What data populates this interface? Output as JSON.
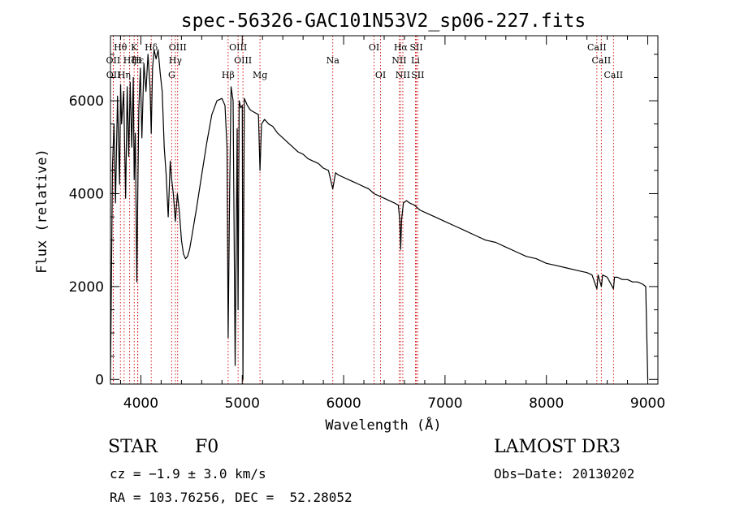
{
  "chart_data": {
    "type": "line",
    "title": "spec-56326-GAC101N53V2_sp06-227.fits",
    "xlabel": "Wavelength (Å)",
    "ylabel": "Flux (relative)",
    "xlim": [
      3700,
      9100
    ],
    "ylim": [
      -100,
      7400
    ],
    "x_ticks": [
      4000,
      5000,
      6000,
      7000,
      8000,
      9000
    ],
    "x_tick_labels": [
      "4000",
      "5000",
      "6000",
      "7000",
      "8000",
      "9000"
    ],
    "y_ticks": [
      0,
      2000,
      4000,
      6000
    ],
    "y_tick_labels": [
      "0",
      "2000",
      "4000",
      "6000"
    ],
    "grid": false,
    "lines": [
      {
        "label": "Hθ",
        "wavelength": 3798,
        "row": 0
      },
      {
        "label": "OII",
        "wavelength": 3727,
        "row": 1
      },
      {
        "label": "OII",
        "wavelength": 3729,
        "row": 2
      },
      {
        "label": "Hη",
        "wavelength": 3835,
        "row": 2
      },
      {
        "label": "K",
        "wavelength": 3934,
        "row": 0
      },
      {
        "label": "H",
        "wavelength": 3968,
        "row": 1
      },
      {
        "label": "Hε",
        "wavelength": 3970,
        "row": 1
      },
      {
        "label": "Hζ",
        "wavelength": 3889,
        "row": 1
      },
      {
        "label": "Hδ",
        "wavelength": 4102,
        "row": 0
      },
      {
        "label": "OIII",
        "wavelength": 4363,
        "row": 0
      },
      {
        "label": "Hγ",
        "wavelength": 4340,
        "row": 1
      },
      {
        "label": "G",
        "wavelength": 4304,
        "row": 2
      },
      {
        "label": "Hβ",
        "wavelength": 4861,
        "row": 2
      },
      {
        "label": "OIII",
        "wavelength": 4959,
        "row": 0
      },
      {
        "label": "OIII",
        "wavelength": 5007,
        "row": 1
      },
      {
        "label": "Mg",
        "wavelength": 5175,
        "row": 2
      },
      {
        "label": "Na",
        "wavelength": 5893,
        "row": 1
      },
      {
        "label": "OI",
        "wavelength": 6300,
        "row": 0
      },
      {
        "label": "OI",
        "wavelength": 6364,
        "row": 2
      },
      {
        "label": "Hα",
        "wavelength": 6563,
        "row": 0
      },
      {
        "label": "NII",
        "wavelength": 6548,
        "row": 1
      },
      {
        "label": "NII",
        "wavelength": 6584,
        "row": 2
      },
      {
        "label": "SII",
        "wavelength": 6717,
        "row": 0
      },
      {
        "label": "SII",
        "wavelength": 6731,
        "row": 2
      },
      {
        "label": "Li",
        "wavelength": 6708,
        "row": 1
      },
      {
        "label": "CaII",
        "wavelength": 8498,
        "row": 0
      },
      {
        "label": "CaII",
        "wavelength": 8542,
        "row": 1
      },
      {
        "label": "CaII",
        "wavelength": 8662,
        "row": 2
      }
    ],
    "spectrum": {
      "x": [
        3700,
        3720,
        3735,
        3750,
        3770,
        3790,
        3800,
        3810,
        3830,
        3850,
        3865,
        3880,
        3895,
        3910,
        3925,
        3934,
        3945,
        3960,
        3968,
        3980,
        3995,
        4010,
        4030,
        4050,
        4070,
        4090,
        4102,
        4115,
        4130,
        4150,
        4170,
        4190,
        4210,
        4230,
        4250,
        4270,
        4290,
        4304,
        4320,
        4340,
        4360,
        4380,
        4400,
        4420,
        4440,
        4460,
        4480,
        4500,
        4550,
        4600,
        4650,
        4700,
        4750,
        4800,
        4830,
        4850,
        4861,
        4875,
        4890,
        4910,
        4930,
        4950,
        4959,
        4970,
        4985,
        5000,
        5007,
        5020,
        5050,
        5080,
        5120,
        5160,
        5175,
        5190,
        5220,
        5260,
        5300,
        5350,
        5400,
        5450,
        5500,
        5550,
        5600,
        5650,
        5700,
        5750,
        5800,
        5850,
        5893,
        5920,
        5950,
        6000,
        6050,
        6100,
        6150,
        6200,
        6250,
        6300,
        6350,
        6400,
        6450,
        6500,
        6540,
        6555,
        6563,
        6572,
        6590,
        6620,
        6650,
        6700,
        6750,
        6800,
        6900,
        7000,
        7100,
        7200,
        7300,
        7400,
        7500,
        7600,
        7700,
        7800,
        7900,
        8000,
        8100,
        8200,
        8300,
        8400,
        8450,
        8498,
        8510,
        8542,
        8555,
        8600,
        8662,
        8672,
        8700,
        8750,
        8800,
        8850,
        8900,
        8950,
        8980,
        9000
      ],
      "y": [
        0,
        4600,
        5500,
        3800,
        6100,
        4200,
        6350,
        5500,
        6200,
        3900,
        6300,
        4800,
        6400,
        5000,
        6500,
        4300,
        5300,
        2100,
        3800,
        5800,
        6700,
        5200,
        6800,
        6200,
        7000,
        6300,
        5300,
        6700,
        7100,
        6900,
        7100,
        6600,
        6200,
        5000,
        4400,
        3500,
        4700,
        4300,
        4000,
        3400,
        4000,
        3600,
        3000,
        2700,
        2600,
        2650,
        2800,
        3050,
        3700,
        4400,
        5100,
        5700,
        6000,
        6050,
        5900,
        5000,
        900,
        4000,
        6300,
        6000,
        300,
        5400,
        1500,
        6000,
        5850,
        5900,
        0,
        6050,
        5900,
        5800,
        5750,
        5700,
        4500,
        5500,
        5600,
        5500,
        5450,
        5300,
        5200,
        5100,
        5000,
        4900,
        4850,
        4750,
        4700,
        4650,
        4550,
        4500,
        4100,
        4450,
        4400,
        4350,
        4300,
        4250,
        4200,
        4150,
        4100,
        4000,
        3950,
        3900,
        3850,
        3800,
        3750,
        3400,
        2800,
        3450,
        3800,
        3850,
        3800,
        3750,
        3650,
        3600,
        3500,
        3400,
        3300,
        3200,
        3100,
        3000,
        2950,
        2850,
        2750,
        2650,
        2600,
        2500,
        2450,
        2400,
        2350,
        2300,
        2250,
        1950,
        2250,
        2000,
        2250,
        2200,
        1950,
        2200,
        2200,
        2150,
        2150,
        2100,
        2100,
        2050,
        2000,
        0
      ]
    }
  },
  "info": {
    "object_class": "STAR",
    "subclass": "F0",
    "survey": "LAMOST DR3",
    "redshift": "cz = −1.9 ± 3.0 km/s",
    "obs_date": "Obs−Date: 20130202",
    "coords": "RA = 103.76256, DEC =  52.28052"
  }
}
